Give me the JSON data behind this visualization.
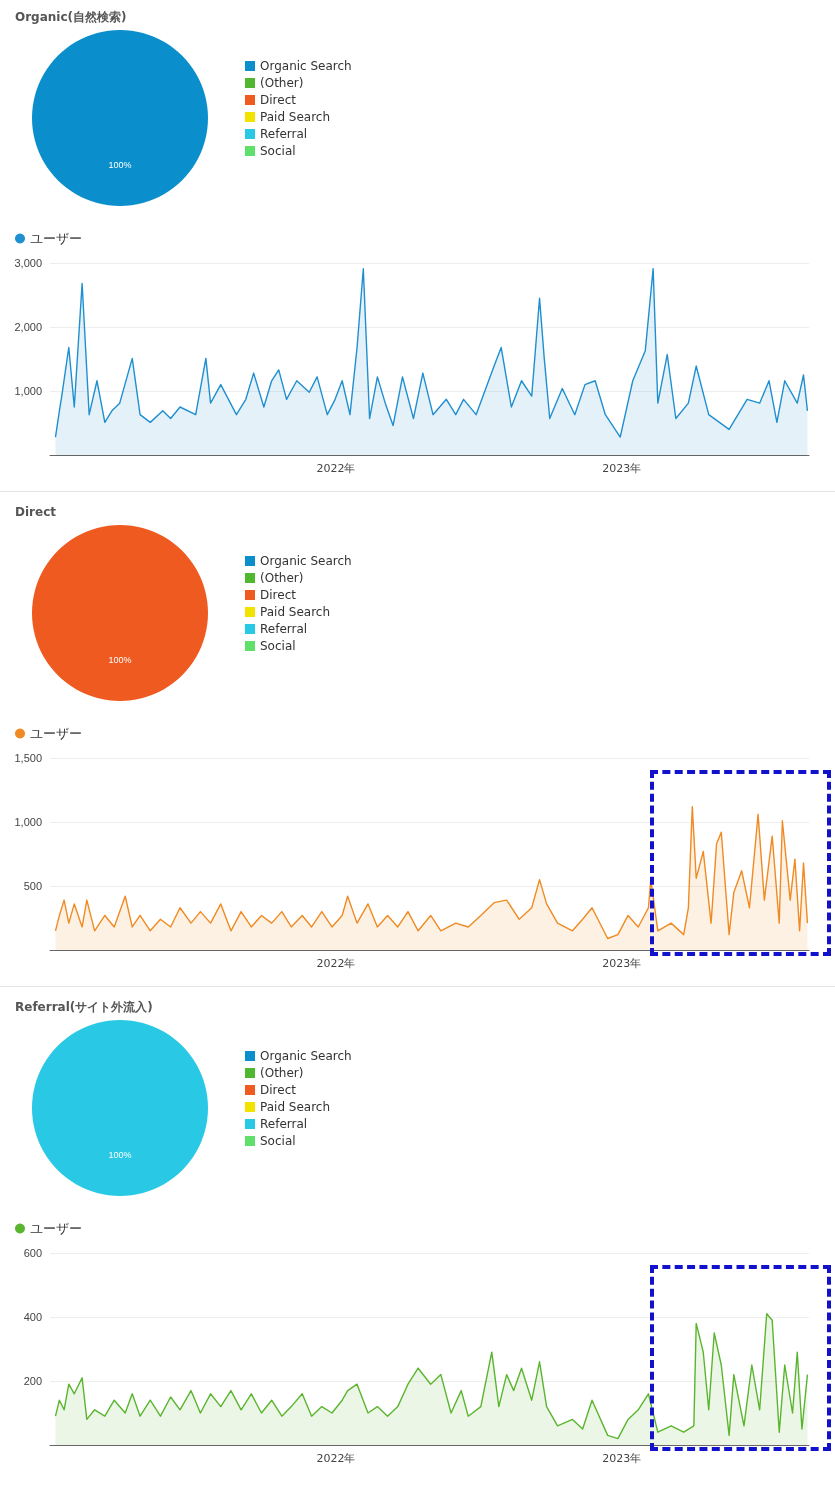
{
  "chart_data": [
    {
      "type": "pie",
      "title": "Organic(自然検索)",
      "categories": [
        "Organic Search",
        "(Other)",
        "Direct",
        "Paid Search",
        "Referral",
        "Social"
      ],
      "values": [
        100,
        0,
        0,
        0,
        0,
        0
      ],
      "colors": [
        "#0a8fcc",
        "#4fb82e",
        "#ee5a20",
        "#f2e200",
        "#29c8e5",
        "#5fe06a"
      ],
      "value_labels": [
        "100%",
        null,
        null,
        null,
        null,
        null
      ],
      "legend": "right"
    },
    {
      "type": "area",
      "legend": "top left",
      "grid": "y",
      "marker": "none",
      "xlim": [
        "2021-01-01",
        "2023-08-28"
      ],
      "xticks": [
        {
          "value": "2022-01-01",
          "label": "2022年"
        },
        {
          "value": "2023-01-01",
          "label": "2023年"
        }
      ],
      "ylim": [
        0,
        3000
      ],
      "yticks": [
        {
          "value": 1000,
          "label": "1,000"
        },
        {
          "value": 2000,
          "label": "2,000"
        },
        {
          "value": 3000,
          "label": "3,000"
        }
      ],
      "series": [
        {
          "name": "ユーザー",
          "color": "#1f8fd0",
          "x": [
            "2021-01-08",
            "2021-01-13",
            "2021-01-16",
            "2021-01-25",
            "2021-02-01",
            "2021-02-11",
            "2021-02-20",
            "2021-03-02",
            "2021-03-12",
            "2021-03-21",
            "2021-03-31",
            "2021-04-16",
            "2021-04-26",
            "2021-05-09",
            "2021-05-25",
            "2021-06-04",
            "2021-06-16",
            "2021-07-06",
            "2021-07-19",
            "2021-07-25",
            "2021-08-07",
            "2021-08-27",
            "2021-09-08",
            "2021-09-18",
            "2021-10-01",
            "2021-10-11",
            "2021-10-20",
            "2021-10-30",
            "2021-11-12",
            "2021-11-28",
            "2021-12-08",
            "2021-12-21",
            "2021-12-31",
            "2022-01-09",
            "2022-01-19",
            "2022-01-28",
            "2022-02-05",
            "2022-02-13",
            "2022-02-23",
            "2022-03-05",
            "2022-03-15",
            "2022-03-27",
            "2022-04-10",
            "2022-04-22",
            "2022-05-05",
            "2022-05-22",
            "2022-06-03",
            "2022-06-13",
            "2022-06-29",
            "2022-07-15",
            "2022-07-22",
            "2022-07-31",
            "2022-08-13",
            "2022-08-26",
            "2022-09-08",
            "2022-09-18",
            "2022-09-24",
            "2022-10-01",
            "2022-10-17",
            "2022-11-02",
            "2022-11-15",
            "2022-11-28",
            "2022-12-11",
            "2022-12-30",
            "2023-01-15",
            "2023-01-31",
            "2023-02-10",
            "2023-02-16",
            "2023-02-28",
            "2023-03-11",
            "2023-03-27",
            "2023-04-06",
            "2023-04-22",
            "2023-05-18",
            "2023-06-10",
            "2023-06-26",
            "2023-07-08",
            "2023-07-18",
            "2023-07-28",
            "2023-08-13",
            "2023-08-21",
            "2023-08-26"
          ],
          "values": [
            280,
            690,
            920,
            1680,
            750,
            2680,
            630,
            1160,
            510,
            690,
            810,
            1510,
            630,
            510,
            690,
            570,
            750,
            630,
            1510,
            810,
            1100,
            630,
            870,
            1280,
            750,
            1160,
            1330,
            870,
            1160,
            980,
            1220,
            630,
            870,
            1160,
            630,
            1680,
            2910,
            570,
            1220,
            810,
            460,
            1220,
            570,
            1280,
            630,
            870,
            630,
            870,
            630,
            1160,
            1390,
            1680,
            750,
            1160,
            920,
            2450,
            1510,
            570,
            1040,
            630,
            1100,
            1160,
            630,
            280,
            1160,
            1630,
            2910,
            810,
            1570,
            570,
            810,
            1390,
            630,
            400,
            870,
            810,
            1160,
            510,
            1160,
            810,
            1250,
            690
          ]
        }
      ]
    },
    {
      "type": "pie",
      "title": "Direct",
      "categories": [
        "Organic Search",
        "(Other)",
        "Direct",
        "Paid Search",
        "Referral",
        "Social"
      ],
      "values": [
        0,
        0,
        100,
        0,
        0,
        0
      ],
      "colors": [
        "#0a8fcc",
        "#4fb82e",
        "#ee5a20",
        "#f2e200",
        "#29c8e5",
        "#5fe06a"
      ],
      "value_labels": [
        null,
        null,
        "100%",
        null,
        null,
        null
      ],
      "legend": "right"
    },
    {
      "type": "area",
      "legend": "top left",
      "grid": "y",
      "marker": "none",
      "xlim": [
        "2021-01-01",
        "2023-08-28"
      ],
      "xticks": [
        {
          "value": "2022-01-01",
          "label": "2022年"
        },
        {
          "value": "2023-01-01",
          "label": "2023年"
        }
      ],
      "ylim": [
        0,
        1500
      ],
      "yticks": [
        500,
        {
          "value": 1000,
          "label": "1,000"
        },
        {
          "value": 1500,
          "label": "1,500"
        }
      ],
      "series": [
        {
          "name": "ユーザー",
          "color": "#f08a22",
          "x": [
            "2021-01-08",
            "2021-01-13",
            "2021-01-19",
            "2021-01-25",
            "2021-02-01",
            "2021-02-11",
            "2021-02-17",
            "2021-02-27",
            "2021-03-12",
            "2021-03-24",
            "2021-04-07",
            "2021-04-16",
            "2021-04-26",
            "2021-05-09",
            "2021-05-22",
            "2021-06-04",
            "2021-06-16",
            "2021-06-30",
            "2021-07-12",
            "2021-07-25",
            "2021-08-07",
            "2021-08-20",
            "2021-09-02",
            "2021-09-15",
            "2021-09-28",
            "2021-10-11",
            "2021-10-24",
            "2021-11-05",
            "2021-11-19",
            "2021-12-01",
            "2021-12-14",
            "2021-12-27",
            "2022-01-09",
            "2022-01-16",
            "2022-01-28",
            "2022-02-11",
            "2022-02-23",
            "2022-03-08",
            "2022-03-21",
            "2022-04-03",
            "2022-04-16",
            "2022-05-02",
            "2022-05-15",
            "2022-06-03",
            "2022-06-19",
            "2022-07-05",
            "2022-07-22",
            "2022-08-07",
            "2022-08-23",
            "2022-09-08",
            "2022-09-18",
            "2022-09-27",
            "2022-10-11",
            "2022-10-30",
            "2022-11-12",
            "2022-11-24",
            "2022-12-14",
            "2022-12-27",
            "2023-01-09",
            "2023-01-22",
            "2023-02-04",
            "2023-02-07",
            "2023-02-16",
            "2023-03-05",
            "2023-03-21",
            "2023-03-27",
            "2023-04-01",
            "2023-04-06",
            "2023-04-15",
            "2023-04-25",
            "2023-05-02",
            "2023-05-08",
            "2023-05-18",
            "2023-05-24",
            "2023-06-03",
            "2023-06-13",
            "2023-06-24",
            "2023-07-02",
            "2023-07-12",
            "2023-07-21",
            "2023-07-25",
            "2023-08-04",
            "2023-08-10",
            "2023-08-16",
            "2023-08-21",
            "2023-08-26"
          ],
          "values": [
            150,
            270,
            390,
            210,
            360,
            180,
            390,
            150,
            270,
            180,
            420,
            180,
            270,
            150,
            240,
            180,
            330,
            210,
            300,
            210,
            360,
            150,
            300,
            180,
            270,
            210,
            300,
            180,
            270,
            180,
            300,
            180,
            270,
            420,
            210,
            360,
            180,
            270,
            180,
            300,
            150,
            270,
            150,
            210,
            180,
            270,
            370,
            390,
            240,
            330,
            550,
            360,
            210,
            150,
            240,
            330,
            90,
            120,
            270,
            180,
            330,
            550,
            150,
            210,
            120,
            330,
            1120,
            560,
            770,
            210,
            830,
            920,
            120,
            450,
            620,
            330,
            1060,
            390,
            890,
            210,
            1010,
            390,
            710,
            150,
            680,
            210
          ]
        }
      ]
    },
    {
      "type": "pie",
      "title": "Referral(サイト外流入)",
      "categories": [
        "Organic Search",
        "(Other)",
        "Direct",
        "Paid Search",
        "Referral",
        "Social"
      ],
      "values": [
        0,
        0,
        0,
        0,
        100,
        0
      ],
      "colors": [
        "#0a8fcc",
        "#4fb82e",
        "#ee5a20",
        "#f2e200",
        "#29c8e5",
        "#5fe06a"
      ],
      "value_labels": [
        null,
        null,
        null,
        null,
        "100%",
        null
      ],
      "legend": "right"
    },
    {
      "type": "area",
      "legend": "top left",
      "grid": "y",
      "marker": "none",
      "xlim": [
        "2021-01-01",
        "2023-08-28"
      ],
      "xticks": [
        {
          "value": "2022-01-01",
          "label": "2022年"
        },
        {
          "value": "2023-01-01",
          "label": "2023年"
        }
      ],
      "ylim": [
        0,
        600
      ],
      "yticks": [
        200,
        400,
        600
      ],
      "series": [
        {
          "name": "ユーザー",
          "color": "#5ab52e",
          "x": [
            "2021-01-08",
            "2021-01-13",
            "2021-01-19",
            "2021-01-25",
            "2021-02-01",
            "2021-02-11",
            "2021-02-17",
            "2021-02-27",
            "2021-03-12",
            "2021-03-24",
            "2021-04-07",
            "2021-04-16",
            "2021-04-26",
            "2021-05-09",
            "2021-05-22",
            "2021-06-04",
            "2021-06-16",
            "2021-06-30",
            "2021-07-12",
            "2021-07-25",
            "2021-08-07",
            "2021-08-20",
            "2021-09-02",
            "2021-09-15",
            "2021-09-28",
            "2021-10-11",
            "2021-10-24",
            "2021-11-05",
            "2021-11-19",
            "2021-12-01",
            "2021-12-14",
            "2021-12-27",
            "2022-01-09",
            "2022-01-16",
            "2022-01-28",
            "2022-02-11",
            "2022-02-23",
            "2022-03-08",
            "2022-03-21",
            "2022-04-03",
            "2022-04-16",
            "2022-05-02",
            "2022-05-15",
            "2022-05-28",
            "2022-06-10",
            "2022-06-19",
            "2022-07-05",
            "2022-07-19",
            "2022-07-28",
            "2022-08-07",
            "2022-08-16",
            "2022-08-26",
            "2022-09-08",
            "2022-09-18",
            "2022-09-27",
            "2022-10-11",
            "2022-10-30",
            "2022-11-12",
            "2022-11-24",
            "2022-12-14",
            "2022-12-27",
            "2023-01-09",
            "2023-01-22",
            "2023-02-04",
            "2023-02-16",
            "2023-03-05",
            "2023-03-21",
            "2023-04-03",
            "2023-04-06",
            "2023-04-15",
            "2023-04-22",
            "2023-04-29",
            "2023-05-08",
            "2023-05-18",
            "2023-05-24",
            "2023-06-06",
            "2023-06-16",
            "2023-06-26",
            "2023-07-05",
            "2023-07-12",
            "2023-07-21",
            "2023-07-28",
            "2023-08-07",
            "2023-08-13",
            "2023-08-19",
            "2023-08-26"
          ],
          "values": [
            90,
            140,
            110,
            190,
            160,
            210,
            80,
            110,
            90,
            140,
            100,
            160,
            90,
            140,
            90,
            150,
            110,
            170,
            100,
            160,
            120,
            170,
            110,
            160,
            100,
            140,
            90,
            120,
            160,
            90,
            120,
            100,
            140,
            170,
            190,
            100,
            120,
            90,
            120,
            190,
            240,
            190,
            220,
            100,
            170,
            90,
            120,
            290,
            120,
            220,
            170,
            240,
            140,
            260,
            120,
            60,
            80,
            50,
            140,
            30,
            20,
            80,
            110,
            160,
            40,
            60,
            40,
            60,
            380,
            290,
            110,
            350,
            250,
            30,
            220,
            60,
            250,
            110,
            410,
            390,
            40,
            250,
            100,
            290,
            50,
            220
          ]
        }
      ]
    }
  ]
}
